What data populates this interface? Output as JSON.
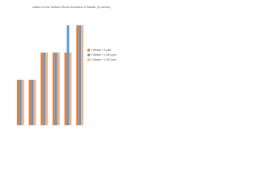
{
  "chart_data": {
    "type": "bar",
    "title": "ulation on the Surface Mould formation of 'Bakalu' (in weeks)",
    "categories": [
      null,
      null,
      null,
      null,
      null,
      null
    ],
    "series": [
      {
        "name": "0 Weeks + 5 ppm",
        "color": "#ED7D31",
        "values": [
          5,
          5,
          8,
          8,
          8,
          11
        ]
      },
      {
        "name": "0 Weeks + 1,000 ppm",
        "color": "#5B9BD5",
        "values": [
          5,
          5,
          8,
          8,
          11,
          11
        ]
      },
      {
        "name": "0 Weeks + 2,000 ppm",
        "color": "#F4B183",
        "values": [
          5,
          5,
          8,
          8,
          8,
          11
        ]
      }
    ],
    "ylim": [
      0,
      12
    ],
    "legend": "right"
  }
}
